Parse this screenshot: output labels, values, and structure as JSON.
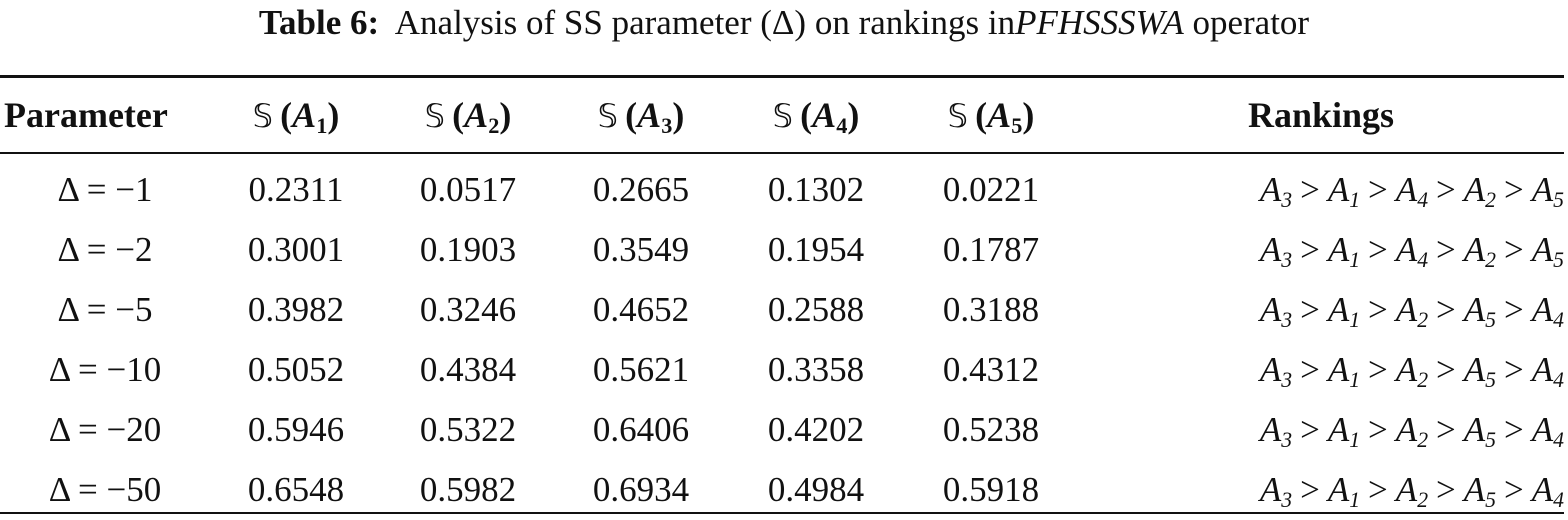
{
  "caption": {
    "label": "Table 6:",
    "text_before": "Analysis of SS parameter (Δ) on rankings in",
    "operator": "PFHSSSWA",
    "text_after": "operator"
  },
  "table": {
    "headers": [
      "Parameter",
      "𝕊(A1)",
      "𝕊(A2)",
      "𝕊(A3)",
      "𝕊(A4)",
      "𝕊(A5)",
      "Rankings"
    ],
    "rows": [
      {
        "parameter": "Δ = −1",
        "values": [
          "0.2311",
          "0.0517",
          "0.2665",
          "0.1302",
          "0.0221"
        ],
        "ranking": [
          "3",
          "1",
          "4",
          "2",
          "5"
        ]
      },
      {
        "parameter": "Δ = −2",
        "values": [
          "0.3001",
          "0.1903",
          "0.3549",
          "0.1954",
          "0.1787"
        ],
        "ranking": [
          "3",
          "1",
          "4",
          "2",
          "5"
        ]
      },
      {
        "parameter": "Δ = −5",
        "values": [
          "0.3982",
          "0.3246",
          "0.4652",
          "0.2588",
          "0.3188"
        ],
        "ranking": [
          "3",
          "1",
          "2",
          "5",
          "4"
        ]
      },
      {
        "parameter": "Δ = −10",
        "values": [
          "0.5052",
          "0.4384",
          "0.5621",
          "0.3358",
          "0.4312"
        ],
        "ranking": [
          "3",
          "1",
          "2",
          "5",
          "4"
        ]
      },
      {
        "parameter": "Δ = −20",
        "values": [
          "0.5946",
          "0.5322",
          "0.6406",
          "0.4202",
          "0.5238"
        ],
        "ranking": [
          "3",
          "1",
          "2",
          "5",
          "4"
        ]
      },
      {
        "parameter": "Δ = −50",
        "values": [
          "0.6548",
          "0.5982",
          "0.6934",
          "0.4984",
          "0.5918"
        ],
        "ranking": [
          "3",
          "1",
          "2",
          "5",
          "4"
        ]
      }
    ]
  }
}
